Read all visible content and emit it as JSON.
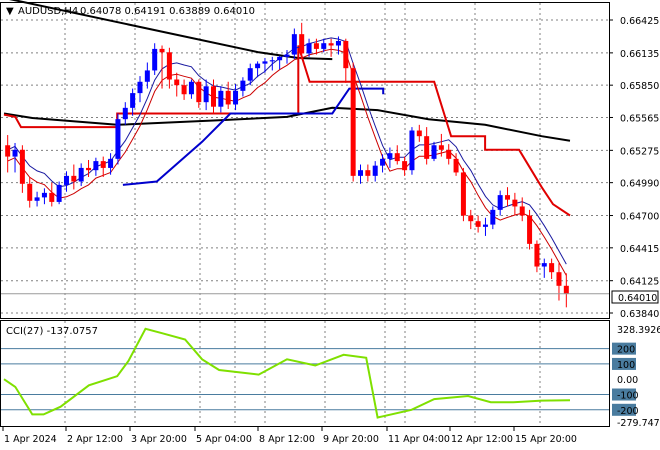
{
  "window": {
    "symbol_timeframe": "AUDUSD,H4",
    "ohlc": "0.64078 0.64191 0.63889 0.64010",
    "cci_label": "CCI(27) -137.0757"
  },
  "price_axis": {
    "ticks": [
      "0.66425",
      "0.66135",
      "0.65850",
      "0.65565",
      "0.65275",
      "0.64990",
      "0.64700",
      "0.64415",
      "0.64125",
      "0.63840"
    ],
    "current_price": "0.64010"
  },
  "cci_axis": {
    "ticks": [
      "328.3926",
      "200",
      "100",
      "0.00",
      "-100",
      "-200",
      "-279.7475"
    ]
  },
  "time_axis": {
    "labels": [
      "1 Apr 2024",
      "2 Apr 12:00",
      "3 Apr 20:00",
      "5 Apr 04:00",
      "8 Apr 12:00",
      "9 Apr 20:00",
      "11 Apr 04:00",
      "12 Apr 12:00",
      "15 Apr 20:00"
    ]
  },
  "colors": {
    "up_candle": "#0000ff",
    "down_candle": "#ff0000",
    "ma_black": "#000000",
    "band_red": "#e00000",
    "band_blue": "#0000cc",
    "cci_line": "#7fe000",
    "cci_level": "#4a7c9f",
    "grid": "#808080"
  },
  "chart_data": {
    "type": "candlestick",
    "symbol": "AUDUSD",
    "timeframe": "H4",
    "candles": [
      {
        "o": 0.6532,
        "h": 0.6541,
        "l": 0.6508,
        "c": 0.6522
      },
      {
        "o": 0.6522,
        "h": 0.6534,
        "l": 0.6508,
        "c": 0.6528
      },
      {
        "o": 0.6528,
        "h": 0.6532,
        "l": 0.649,
        "c": 0.6498
      },
      {
        "o": 0.6498,
        "h": 0.6504,
        "l": 0.6477,
        "c": 0.6483
      },
      {
        "o": 0.6483,
        "h": 0.6491,
        "l": 0.6478,
        "c": 0.6486
      },
      {
        "o": 0.6486,
        "h": 0.6494,
        "l": 0.648,
        "c": 0.649
      },
      {
        "o": 0.649,
        "h": 0.6499,
        "l": 0.6478,
        "c": 0.6482
      },
      {
        "o": 0.6482,
        "h": 0.65,
        "l": 0.648,
        "c": 0.6497
      },
      {
        "o": 0.6497,
        "h": 0.6509,
        "l": 0.6491,
        "c": 0.6505
      },
      {
        "o": 0.6505,
        "h": 0.6515,
        "l": 0.6493,
        "c": 0.65
      },
      {
        "o": 0.65,
        "h": 0.6516,
        "l": 0.6496,
        "c": 0.6512
      },
      {
        "o": 0.6512,
        "h": 0.6519,
        "l": 0.6504,
        "c": 0.651
      },
      {
        "o": 0.651,
        "h": 0.6521,
        "l": 0.6505,
        "c": 0.6518
      },
      {
        "o": 0.6518,
        "h": 0.6522,
        "l": 0.6504,
        "c": 0.6512
      },
      {
        "o": 0.6512,
        "h": 0.6525,
        "l": 0.6506,
        "c": 0.652
      },
      {
        "o": 0.652,
        "h": 0.656,
        "l": 0.6515,
        "c": 0.6555
      },
      {
        "o": 0.6555,
        "h": 0.657,
        "l": 0.655,
        "c": 0.6565
      },
      {
        "o": 0.6565,
        "h": 0.6582,
        "l": 0.6558,
        "c": 0.6578
      },
      {
        "o": 0.6578,
        "h": 0.6593,
        "l": 0.657,
        "c": 0.6588
      },
      {
        "o": 0.6588,
        "h": 0.6605,
        "l": 0.6582,
        "c": 0.6598
      },
      {
        "o": 0.6598,
        "h": 0.6622,
        "l": 0.6594,
        "c": 0.6617
      },
      {
        "o": 0.6617,
        "h": 0.662,
        "l": 0.6582,
        "c": 0.6614
      },
      {
        "o": 0.6614,
        "h": 0.6618,
        "l": 0.6582,
        "c": 0.659
      },
      {
        "o": 0.659,
        "h": 0.6596,
        "l": 0.6575,
        "c": 0.6585
      },
      {
        "o": 0.6585,
        "h": 0.659,
        "l": 0.6572,
        "c": 0.6577
      },
      {
        "o": 0.6577,
        "h": 0.659,
        "l": 0.6573,
        "c": 0.6588
      },
      {
        "o": 0.6588,
        "h": 0.659,
        "l": 0.6565,
        "c": 0.657
      },
      {
        "o": 0.657,
        "h": 0.659,
        "l": 0.6563,
        "c": 0.6584
      },
      {
        "o": 0.6584,
        "h": 0.659,
        "l": 0.656,
        "c": 0.6566
      },
      {
        "o": 0.6566,
        "h": 0.6584,
        "l": 0.6561,
        "c": 0.658
      },
      {
        "o": 0.658,
        "h": 0.6588,
        "l": 0.6564,
        "c": 0.6568
      },
      {
        "o": 0.6568,
        "h": 0.6586,
        "l": 0.6563,
        "c": 0.658
      },
      {
        "o": 0.658,
        "h": 0.6592,
        "l": 0.6575,
        "c": 0.6589
      },
      {
        "o": 0.6589,
        "h": 0.6604,
        "l": 0.6585,
        "c": 0.66
      },
      {
        "o": 0.66,
        "h": 0.6606,
        "l": 0.6592,
        "c": 0.6604
      },
      {
        "o": 0.6604,
        "h": 0.6609,
        "l": 0.6596,
        "c": 0.6606
      },
      {
        "o": 0.6606,
        "h": 0.661,
        "l": 0.6598,
        "c": 0.6607
      },
      {
        "o": 0.6607,
        "h": 0.6611,
        "l": 0.6599,
        "c": 0.661
      },
      {
        "o": 0.661,
        "h": 0.6616,
        "l": 0.6604,
        "c": 0.6612
      },
      {
        "o": 0.6612,
        "h": 0.6635,
        "l": 0.6608,
        "c": 0.663
      },
      {
        "o": 0.663,
        "h": 0.664,
        "l": 0.6608,
        "c": 0.6613
      },
      {
        "o": 0.6613,
        "h": 0.6626,
        "l": 0.661,
        "c": 0.6622
      },
      {
        "o": 0.6622,
        "h": 0.6626,
        "l": 0.6612,
        "c": 0.6617
      },
      {
        "o": 0.6617,
        "h": 0.6626,
        "l": 0.6614,
        "c": 0.6622
      },
      {
        "o": 0.6622,
        "h": 0.6626,
        "l": 0.661,
        "c": 0.662
      },
      {
        "o": 0.662,
        "h": 0.6628,
        "l": 0.6612,
        "c": 0.6624
      },
      {
        "o": 0.6624,
        "h": 0.6626,
        "l": 0.6587,
        "c": 0.66
      },
      {
        "o": 0.66,
        "h": 0.6605,
        "l": 0.65,
        "c": 0.6505
      },
      {
        "o": 0.6505,
        "h": 0.6515,
        "l": 0.6498,
        "c": 0.651
      },
      {
        "o": 0.651,
        "h": 0.6515,
        "l": 0.65,
        "c": 0.6505
      },
      {
        "o": 0.6505,
        "h": 0.6518,
        "l": 0.65,
        "c": 0.6514
      },
      {
        "o": 0.6514,
        "h": 0.6524,
        "l": 0.6508,
        "c": 0.652
      },
      {
        "o": 0.652,
        "h": 0.653,
        "l": 0.6512,
        "c": 0.6525
      },
      {
        "o": 0.6525,
        "h": 0.6532,
        "l": 0.6515,
        "c": 0.6518
      },
      {
        "o": 0.6518,
        "h": 0.6522,
        "l": 0.6505,
        "c": 0.651
      },
      {
        "o": 0.651,
        "h": 0.6548,
        "l": 0.6506,
        "c": 0.6545
      },
      {
        "o": 0.6545,
        "h": 0.655,
        "l": 0.6535,
        "c": 0.654
      },
      {
        "o": 0.654,
        "h": 0.6548,
        "l": 0.6515,
        "c": 0.652
      },
      {
        "o": 0.652,
        "h": 0.6535,
        "l": 0.6518,
        "c": 0.6532
      },
      {
        "o": 0.6532,
        "h": 0.6542,
        "l": 0.6522,
        "c": 0.6528
      },
      {
        "o": 0.6528,
        "h": 0.6533,
        "l": 0.6515,
        "c": 0.652
      },
      {
        "o": 0.652,
        "h": 0.6525,
        "l": 0.6505,
        "c": 0.6508
      },
      {
        "o": 0.6508,
        "h": 0.6512,
        "l": 0.6465,
        "c": 0.647
      },
      {
        "o": 0.647,
        "h": 0.6475,
        "l": 0.6458,
        "c": 0.6465
      },
      {
        "o": 0.6465,
        "h": 0.647,
        "l": 0.6455,
        "c": 0.646
      },
      {
        "o": 0.646,
        "h": 0.6468,
        "l": 0.6452,
        "c": 0.6462
      },
      {
        "o": 0.6462,
        "h": 0.6478,
        "l": 0.6458,
        "c": 0.6475
      },
      {
        "o": 0.6475,
        "h": 0.6492,
        "l": 0.647,
        "c": 0.6488
      },
      {
        "o": 0.6488,
        "h": 0.6495,
        "l": 0.6478,
        "c": 0.6484
      },
      {
        "o": 0.6484,
        "h": 0.649,
        "l": 0.647,
        "c": 0.6478
      },
      {
        "o": 0.6478,
        "h": 0.6486,
        "l": 0.6465,
        "c": 0.647
      },
      {
        "o": 0.647,
        "h": 0.6475,
        "l": 0.644,
        "c": 0.6445
      },
      {
        "o": 0.6445,
        "h": 0.6448,
        "l": 0.642,
        "c": 0.6425
      },
      {
        "o": 0.6425,
        "h": 0.6432,
        "l": 0.6415,
        "c": 0.6428
      },
      {
        "o": 0.6428,
        "h": 0.6432,
        "l": 0.6414,
        "c": 0.642
      },
      {
        "o": 0.642,
        "h": 0.6428,
        "l": 0.6395,
        "c": 0.6408
      },
      {
        "o": 0.6408,
        "h": 0.6419,
        "l": 0.6389,
        "c": 0.6401
      }
    ],
    "ma_black": [
      {
        "p": 0.0,
        "v": 0.6662
      },
      {
        "p": 0.45,
        "v": 0.6614
      },
      {
        "p": 0.52,
        "v": 0.6609
      },
      {
        "p": 0.58,
        "v": 0.6608
      }
    ],
    "ma_black_long": [
      {
        "p": 0.0,
        "v": 0.656
      },
      {
        "p": 0.05,
        "v": 0.6556
      },
      {
        "p": 0.2,
        "v": 0.655
      },
      {
        "p": 0.38,
        "v": 0.6554
      },
      {
        "p": 0.5,
        "v": 0.6557
      },
      {
        "p": 0.58,
        "v": 0.6565
      },
      {
        "p": 0.66,
        "v": 0.6563
      },
      {
        "p": 0.75,
        "v": 0.6555
      },
      {
        "p": 0.85,
        "v": 0.655
      },
      {
        "p": 0.95,
        "v": 0.654
      },
      {
        "p": 1.0,
        "v": 0.6536
      }
    ],
    "red_step": [
      {
        "p": 0.0,
        "v": 0.6559
      },
      {
        "p": 0.02,
        "v": 0.6557
      },
      {
        "p": 0.03,
        "v": 0.6548
      },
      {
        "p": 0.2,
        "v": 0.6548
      },
      {
        "p": 0.2,
        "v": 0.656
      },
      {
        "p": 0.52,
        "v": 0.656
      },
      {
        "p": 0.52,
        "v": 0.662
      },
      {
        "p": 0.54,
        "v": 0.6588
      },
      {
        "p": 0.76,
        "v": 0.6588
      },
      {
        "p": 0.79,
        "v": 0.654
      },
      {
        "p": 0.85,
        "v": 0.654
      },
      {
        "p": 0.85,
        "v": 0.6528
      },
      {
        "p": 0.91,
        "v": 0.6528
      },
      {
        "p": 0.95,
        "v": 0.6495
      },
      {
        "p": 0.97,
        "v": 0.648
      },
      {
        "p": 1.0,
        "v": 0.647
      }
    ],
    "blue_step": [
      {
        "p": 0.21,
        "v": 0.6497
      },
      {
        "p": 0.27,
        "v": 0.65
      },
      {
        "p": 0.35,
        "v": 0.6535
      },
      {
        "p": 0.4,
        "v": 0.656
      },
      {
        "p": 0.58,
        "v": 0.656
      },
      {
        "p": 0.61,
        "v": 0.6582
      },
      {
        "p": 0.67,
        "v": 0.6582
      },
      {
        "p": 0.67,
        "v": 0.6577
      }
    ],
    "cci": [
      {
        "p": 0.0,
        "v": 0
      },
      {
        "p": 0.02,
        "v": -50
      },
      {
        "p": 0.05,
        "v": -230
      },
      {
        "p": 0.07,
        "v": -230
      },
      {
        "p": 0.1,
        "v": -180
      },
      {
        "p": 0.15,
        "v": -40
      },
      {
        "p": 0.2,
        "v": 20
      },
      {
        "p": 0.22,
        "v": 120
      },
      {
        "p": 0.25,
        "v": 330
      },
      {
        "p": 0.28,
        "v": 300
      },
      {
        "p": 0.32,
        "v": 260
      },
      {
        "p": 0.35,
        "v": 130
      },
      {
        "p": 0.38,
        "v": 60
      },
      {
        "p": 0.45,
        "v": 30
      },
      {
        "p": 0.5,
        "v": 130
      },
      {
        "p": 0.55,
        "v": 90
      },
      {
        "p": 0.6,
        "v": 160
      },
      {
        "p": 0.64,
        "v": 140
      },
      {
        "p": 0.66,
        "v": -250
      },
      {
        "p": 0.72,
        "v": -200
      },
      {
        "p": 0.76,
        "v": -130
      },
      {
        "p": 0.82,
        "v": -110
      },
      {
        "p": 0.86,
        "v": -150
      },
      {
        "p": 0.9,
        "v": -150
      },
      {
        "p": 0.95,
        "v": -140
      },
      {
        "p": 1.0,
        "v": -137
      }
    ]
  }
}
